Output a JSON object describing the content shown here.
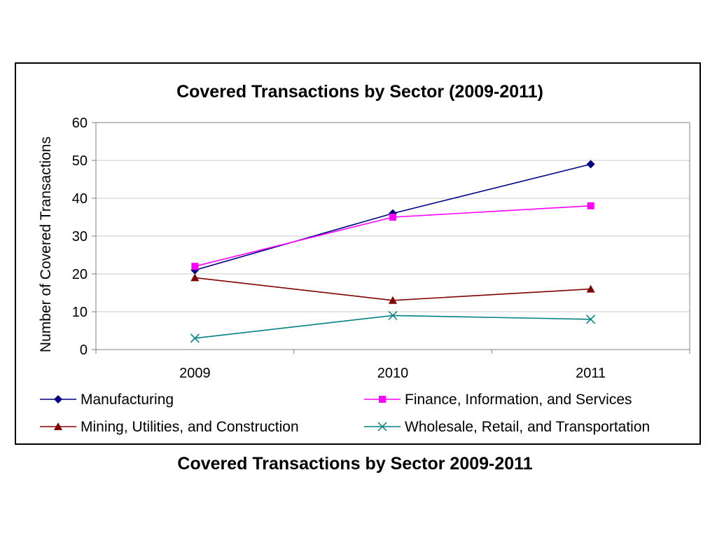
{
  "caption": "Covered Transactions by Sector 2009-2011",
  "chart_data": {
    "type": "line",
    "title": "Covered Transactions by Sector (2009-2011)",
    "xlabel": "",
    "ylabel": "Number of Covered Transactions",
    "categories": [
      "2009",
      "2010",
      "2011"
    ],
    "ylim": [
      0,
      60
    ],
    "yticks": [
      0,
      10,
      20,
      30,
      40,
      50,
      60
    ],
    "grid": true,
    "legend_position": "bottom",
    "series": [
      {
        "name": "Manufacturing",
        "values": [
          21,
          36,
          49
        ],
        "color": "#000080",
        "marker": "diamond"
      },
      {
        "name": "Finance, Information, and Services",
        "values": [
          22,
          35,
          38
        ],
        "color": "#ff00ff",
        "marker": "square"
      },
      {
        "name": "Mining, Utilities, and Construction",
        "values": [
          19,
          13,
          16
        ],
        "color": "#800000",
        "marker": "triangle"
      },
      {
        "name": "Wholesale, Retail, and Transportation",
        "values": [
          3,
          9,
          8
        ],
        "color": "#008080",
        "marker": "x"
      }
    ]
  }
}
